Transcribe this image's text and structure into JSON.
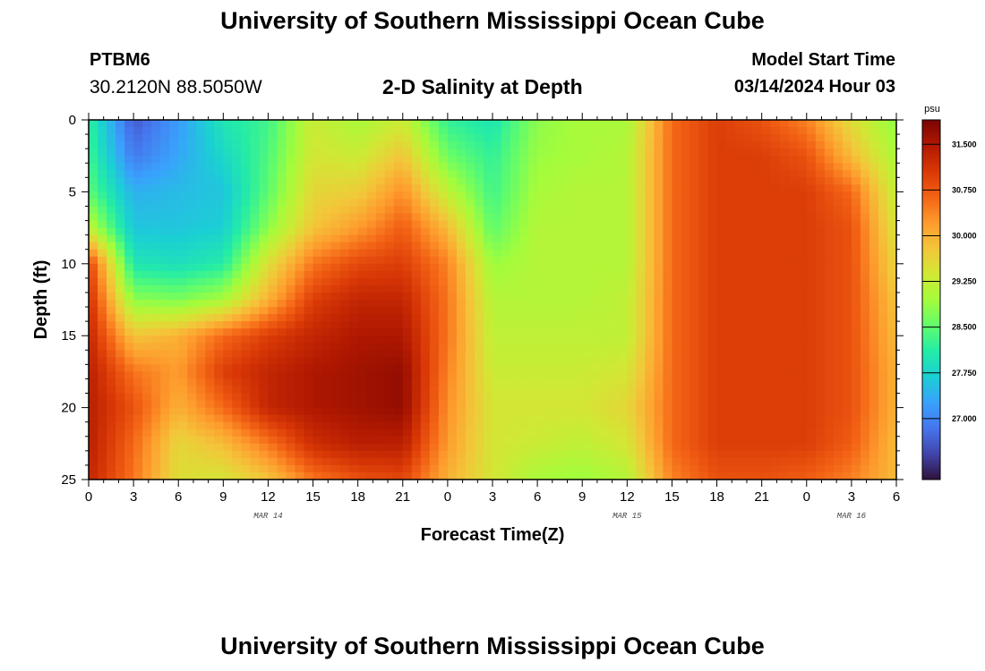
{
  "header": {
    "title": "University of Southern Mississippi Ocean Cube",
    "station_id": "PTBM6",
    "station_coords": "30.2120N  88.5050W",
    "plot_title": "2-D Salinity at Depth",
    "model_start_label": "Model Start Time",
    "model_start_value": "03/14/2024 Hour 03"
  },
  "footer": {
    "title": "University of Southern Mississippi Ocean Cube"
  },
  "chart_data": {
    "type": "heatmap",
    "title": "2-D Salinity at Depth",
    "xlabel": "Forecast Time(Z)",
    "ylabel": "Depth (ft)",
    "x_range_hours": [
      0,
      54
    ],
    "y_range": [
      0,
      25
    ],
    "x_tick_values": [
      0,
      3,
      6,
      9,
      12,
      15,
      18,
      21,
      24,
      27,
      30,
      33,
      36,
      39,
      42,
      45,
      48,
      51,
      54
    ],
    "x_tick_labels": [
      "0",
      "3",
      "6",
      "9",
      "12",
      "15",
      "18",
      "21",
      "0",
      "3",
      "6",
      "9",
      "12",
      "15",
      "18",
      "21",
      "0",
      "3",
      "6"
    ],
    "y_tick_values": [
      0,
      5,
      10,
      15,
      20,
      25
    ],
    "y_tick_labels": [
      "0",
      "5",
      "10",
      "15",
      "20",
      "25"
    ],
    "date_labels": [
      {
        "label": "MAR 14",
        "hour": 12
      },
      {
        "label": "MAR 15",
        "hour": 36
      },
      {
        "label": "MAR 16",
        "hour": 51
      }
    ],
    "colorbar": {
      "unit": "psu",
      "min": 26.0,
      "max": 31.9,
      "tick_values": [
        27.0,
        27.75,
        28.5,
        29.25,
        30.0,
        30.75,
        31.5
      ],
      "tick_labels": [
        "27.000",
        "27.750",
        "28.500",
        "29.250",
        "30.000",
        "30.750",
        "31.500"
      ],
      "color_stops": [
        "#30123b",
        "#4145ab",
        "#4675ed",
        "#39a2fc",
        "#1bcfd4",
        "#24eca6",
        "#61fc6c",
        "#a4fc3b",
        "#d1e834",
        "#f3c63a",
        "#fe9b2d",
        "#f36315",
        "#d93806",
        "#b11901",
        "#7a0402"
      ]
    },
    "grid_hours": [
      0,
      3,
      6,
      9,
      12,
      15,
      18,
      21,
      24,
      27,
      30,
      33,
      36,
      39,
      42,
      45,
      48,
      51,
      54
    ],
    "grid_depths": [
      0,
      2.5,
      5,
      7.5,
      10,
      12.5,
      15,
      17.5,
      20,
      22.5,
      25
    ],
    "salinity_grid": [
      [
        28.2,
        26.6,
        27.2,
        28.0,
        28.3,
        29.3,
        29.0,
        29.3,
        28.2,
        28.0,
        28.8,
        29.0,
        29.0,
        30.6,
        31.0,
        30.8,
        30.4,
        29.5,
        28.8
      ],
      [
        28.3,
        26.9,
        27.3,
        27.8,
        28.4,
        29.4,
        29.3,
        29.8,
        28.6,
        28.2,
        28.9,
        29.0,
        29.1,
        30.6,
        31.0,
        31.0,
        30.8,
        29.9,
        29.0
      ],
      [
        28.5,
        27.4,
        27.5,
        27.6,
        28.5,
        29.6,
        29.7,
        30.3,
        29.2,
        28.3,
        29.0,
        29.1,
        29.1,
        30.6,
        31.0,
        31.0,
        31.0,
        30.6,
        29.2
      ],
      [
        29.2,
        27.6,
        27.6,
        27.7,
        28.8,
        29.8,
        30.2,
        30.7,
        29.9,
        28.5,
        29.1,
        29.1,
        29.1,
        30.6,
        31.0,
        31.0,
        31.0,
        30.8,
        29.4
      ],
      [
        31.0,
        28.0,
        27.9,
        28.1,
        29.5,
        30.5,
        30.9,
        31.0,
        30.4,
        28.9,
        29.1,
        29.1,
        29.1,
        30.6,
        31.0,
        31.0,
        31.0,
        30.8,
        29.6
      ],
      [
        31.2,
        28.8,
        28.7,
        29.0,
        30.0,
        31.0,
        31.3,
        31.3,
        30.5,
        29.1,
        29.1,
        29.1,
        29.2,
        30.6,
        31.0,
        31.0,
        31.0,
        30.8,
        29.8
      ],
      [
        31.3,
        29.8,
        30.0,
        30.6,
        31.0,
        31.3,
        31.5,
        31.5,
        30.5,
        29.2,
        29.2,
        29.2,
        29.2,
        30.6,
        31.0,
        31.0,
        31.0,
        30.8,
        29.9
      ],
      [
        31.4,
        30.5,
        30.2,
        31.0,
        31.3,
        31.5,
        31.6,
        31.7,
        30.4,
        29.3,
        29.3,
        29.3,
        29.4,
        30.6,
        31.0,
        31.0,
        31.0,
        30.8,
        30.0
      ],
      [
        31.4,
        30.8,
        30.0,
        30.6,
        31.3,
        31.5,
        31.6,
        31.7,
        30.3,
        29.4,
        29.4,
        29.4,
        29.6,
        30.6,
        31.0,
        31.0,
        31.0,
        30.8,
        30.0
      ],
      [
        31.4,
        30.6,
        29.6,
        29.9,
        30.5,
        31.2,
        31.4,
        31.4,
        30.2,
        29.4,
        29.3,
        29.2,
        29.4,
        30.6,
        31.0,
        31.0,
        31.0,
        30.7,
        29.9
      ],
      [
        31.3,
        30.5,
        29.5,
        29.4,
        29.8,
        30.5,
        30.8,
        30.9,
        30.0,
        29.4,
        29.0,
        28.9,
        29.1,
        30.4,
        30.8,
        30.8,
        30.7,
        30.4,
        29.9
      ]
    ]
  }
}
